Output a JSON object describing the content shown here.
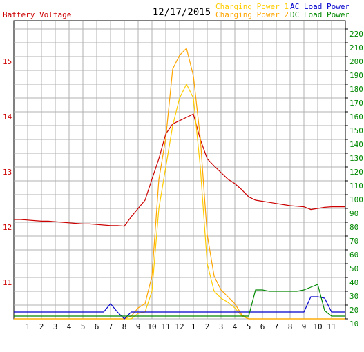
{
  "chart_data": {
    "type": "line",
    "title": "12/17/2015",
    "x": [
      0,
      0.5,
      1,
      1.5,
      2,
      2.5,
      3,
      3.5,
      4,
      4.5,
      5,
      5.5,
      6,
      6.5,
      7,
      7.5,
      8,
      8.5,
      9,
      9.5,
      10,
      10.5,
      11,
      11.5,
      12,
      12.5,
      13,
      13.5,
      14,
      14.5,
      15,
      15.5,
      16,
      16.5,
      17,
      17.5,
      18,
      18.5,
      19,
      19.5,
      20,
      20.5,
      21,
      21.5,
      22,
      22.5,
      23,
      23.5,
      24
    ],
    "xlim": [
      0,
      24
    ],
    "xticks": [
      {
        "value": 1,
        "label": "1"
      },
      {
        "value": 2,
        "label": "2"
      },
      {
        "value": 3,
        "label": "3"
      },
      {
        "value": 4,
        "label": "4"
      },
      {
        "value": 5,
        "label": "5"
      },
      {
        "value": 6,
        "label": "6"
      },
      {
        "value": 7,
        "label": "7"
      },
      {
        "value": 8,
        "label": "8"
      },
      {
        "value": 9,
        "label": "9"
      },
      {
        "value": 10,
        "label": "10"
      },
      {
        "value": 11,
        "label": "11"
      },
      {
        "value": 12,
        "label": "12"
      },
      {
        "value": 13,
        "label": "1"
      },
      {
        "value": 14,
        "label": "2"
      },
      {
        "value": 15,
        "label": "3"
      },
      {
        "value": 16,
        "label": "4"
      },
      {
        "value": 17,
        "label": "5"
      },
      {
        "value": 18,
        "label": "6"
      },
      {
        "value": 19,
        "label": "7"
      },
      {
        "value": 20,
        "label": "8"
      },
      {
        "value": 21,
        "label": "9"
      },
      {
        "value": 22,
        "label": "10"
      },
      {
        "value": 23,
        "label": "11"
      }
    ],
    "ylim": [
      10.35,
      15.75
    ],
    "yticks": [
      11,
      12,
      13,
      14,
      15
    ],
    "y2lim": [
      10,
      226
    ],
    "y2ticks": [
      10,
      20,
      30,
      40,
      50,
      60,
      70,
      80,
      90,
      100,
      110,
      120,
      130,
      140,
      150,
      160,
      170,
      180,
      190,
      200,
      210,
      220
    ],
    "grid": true,
    "legend": "top-right",
    "series": [
      {
        "name": "Battery Voltage",
        "color": "#cc0000",
        "values": [
          12.15,
          12.15,
          12.14,
          12.13,
          12.12,
          12.12,
          12.11,
          12.1,
          12.09,
          12.08,
          12.07,
          12.07,
          12.06,
          12.05,
          12.04,
          12.04,
          12.03,
          12.2,
          12.35,
          12.5,
          12.88,
          13.25,
          13.7,
          13.88,
          13.94,
          14.0,
          14.06,
          13.6,
          13.25,
          13.12,
          13.0,
          12.88,
          12.8,
          12.69,
          12.56,
          12.5,
          12.48,
          12.46,
          12.44,
          12.42,
          12.4,
          12.39,
          12.38,
          12.33,
          12.35,
          12.37,
          12.38,
          12.38,
          12.38
        ]
      },
      {
        "name": "Charging Power 1",
        "color": "#ffcc00",
        "axis": "y2",
        "values": [
          10,
          10,
          10,
          10,
          10,
          10,
          10,
          10,
          10,
          10,
          10,
          10,
          10,
          10,
          10,
          10,
          10,
          10,
          14,
          15,
          30,
          90,
          120,
          150,
          170,
          180,
          170,
          120,
          50,
          30,
          25,
          22,
          18,
          12,
          10,
          10,
          10,
          10,
          10,
          10,
          10,
          10,
          10,
          10,
          10,
          10,
          10,
          10,
          10
        ]
      },
      {
        "name": "Charging Power 2",
        "color": "#ffa500",
        "axis": "y2",
        "values": [
          10,
          10,
          10,
          10,
          10,
          10,
          10,
          10,
          10,
          10,
          10,
          10,
          10,
          10,
          10,
          10,
          10,
          12,
          18,
          21,
          41,
          111,
          141,
          191,
          201,
          206,
          186,
          141,
          71,
          41,
          31,
          26,
          21,
          13,
          10,
          10,
          10,
          10,
          10,
          10,
          10,
          10,
          10,
          10,
          10,
          10,
          10,
          10,
          10
        ]
      },
      {
        "name": "AC Load Power",
        "color": "#0000cc",
        "axis": "y2",
        "values": [
          15,
          15,
          15,
          15,
          15,
          15,
          15,
          15,
          15,
          15,
          15,
          15,
          15,
          15,
          21,
          15,
          10,
          15,
          15,
          15,
          15,
          15,
          15,
          15,
          15,
          15,
          15,
          15,
          15,
          15,
          15,
          15,
          15,
          15,
          15,
          15,
          15,
          15,
          15,
          15,
          15,
          15,
          15,
          26,
          26,
          25,
          15,
          15,
          15
        ]
      },
      {
        "name": "DC Load Power",
        "color": "#008800",
        "axis": "y2",
        "values": [
          12,
          12,
          12,
          12,
          12,
          12,
          12,
          12,
          12,
          12,
          12,
          12,
          12,
          12,
          12,
          12,
          12,
          12,
          12,
          12,
          12,
          12,
          12,
          12,
          12,
          12,
          12,
          12,
          12,
          12,
          12,
          12,
          12,
          12,
          12,
          31,
          31,
          30,
          30,
          30,
          30,
          30,
          31,
          33,
          35,
          16,
          12,
          12,
          12
        ]
      }
    ]
  }
}
